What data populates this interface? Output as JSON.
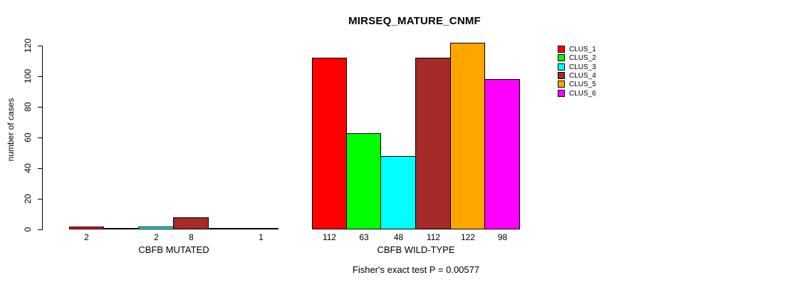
{
  "title": "MIRSEQ_MATURE_CNMF",
  "footer": "Fisher's exact test P = 0.00577",
  "chart_data": {
    "type": "bar",
    "title": "MIRSEQ_MATURE_CNMF",
    "xlabel": "",
    "ylabel": "number of cases",
    "ylim": [
      0,
      120
    ],
    "yticks": [
      0,
      20,
      40,
      60,
      80,
      100,
      120
    ],
    "grid": false,
    "legend_position": "right",
    "bar_labels_shown_for_zero": false,
    "categories": [
      "CBFB MUTATED",
      "CBFB WILD-TYPE"
    ],
    "groups": [
      {
        "label": "CBFB MUTATED",
        "values": [
          2,
          0,
          2,
          8,
          0,
          1
        ]
      },
      {
        "label": "CBFB WILD-TYPE",
        "values": [
          112,
          63,
          48,
          112,
          122,
          98
        ]
      }
    ],
    "series": [
      {
        "name": "CLUS_1",
        "color": "#FF0000",
        "values": [
          2,
          112
        ]
      },
      {
        "name": "CLUS_2",
        "color": "#00FF00",
        "values": [
          0,
          63
        ]
      },
      {
        "name": "CLUS_3",
        "color": "#00FFFF",
        "values": [
          2,
          48
        ]
      },
      {
        "name": "CLUS_4",
        "color": "#A52A2A",
        "values": [
          8,
          112
        ]
      },
      {
        "name": "CLUS_5",
        "color": "#FFA500",
        "values": [
          0,
          122
        ]
      },
      {
        "name": "CLUS_6",
        "color": "#FF00FF",
        "values": [
          1,
          98
        ]
      }
    ],
    "legend": [
      {
        "label": "CLUS_1",
        "color": "#FF0000"
      },
      {
        "label": "CLUS_2",
        "color": "#00FF00"
      },
      {
        "label": "CLUS_3",
        "color": "#00FFFF"
      },
      {
        "label": "CLUS_4",
        "color": "#A52A2A"
      },
      {
        "label": "CLUS_5",
        "color": "#FFA500"
      },
      {
        "label": "CLUS_6",
        "color": "#FF00FF"
      }
    ],
    "annotation": "Fisher's exact test P = 0.00577",
    "text_color": "#000000",
    "background_color": "#FFFFFF"
  }
}
